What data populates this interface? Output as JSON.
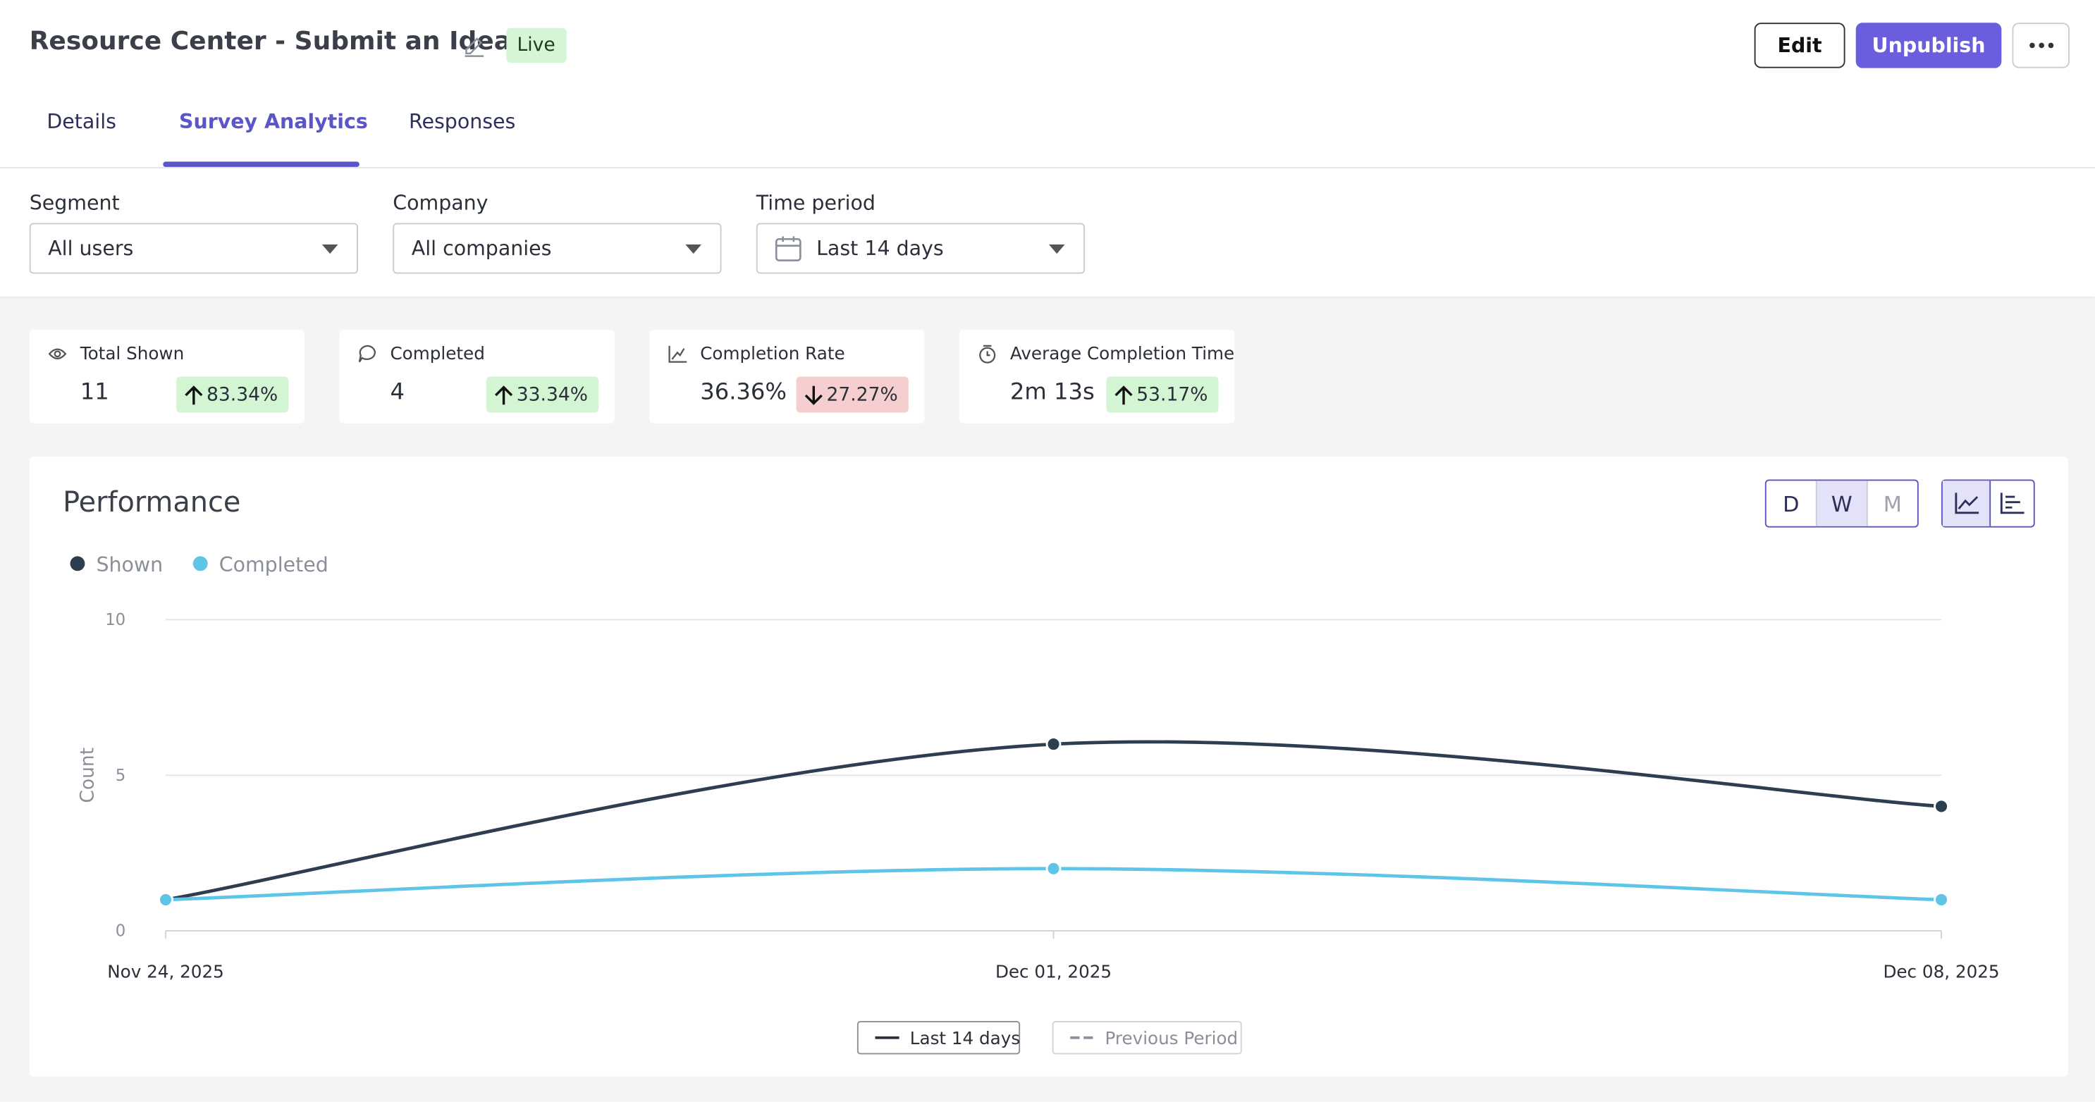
{
  "header": {
    "title": "Resource Center - Submit an Idea",
    "status": "Live",
    "actions": [
      "Edit",
      "Unpublish"
    ]
  },
  "tabs": [
    "Details",
    "Survey Analytics",
    "Responses"
  ],
  "active_tab": 1,
  "filters": [
    {
      "label": "Segment",
      "value": "All users"
    },
    {
      "label": "Company",
      "value": "All companies"
    },
    {
      "label": "Time period",
      "value": "Last 14 days"
    }
  ],
  "stats": [
    {
      "label": "Total Shown",
      "value": "11",
      "change": "83.34%",
      "trend": "up"
    },
    {
      "label": "Completed",
      "value": "4",
      "change": "33.34%",
      "trend": "up"
    },
    {
      "label": "Completion Rate",
      "value": "36.36%",
      "change": "27.27%",
      "trend": "down"
    },
    {
      "label": "Average Completion Time",
      "value": "2m 13s",
      "change": "53.17%",
      "trend": "up"
    }
  ],
  "chart_data": {
    "type": "line",
    "title": "Performance",
    "y_label": "Count",
    "granularity": [
      "D",
      "W",
      "M"
    ],
    "active_granularity": 1,
    "categories": [
      "Nov 24, 2025",
      "Dec 01, 2025",
      "Dec 08, 2025"
    ],
    "series": [
      {
        "name": "Shown",
        "color": "#2d3e50",
        "values": [
          1,
          6,
          4
        ]
      },
      {
        "name": "Completed",
        "color": "#5ec5e8",
        "values": [
          1,
          2,
          1
        ]
      }
    ],
    "ylim": [
      0,
      10
    ],
    "yticks": [
      0,
      5,
      10
    ],
    "grid": true,
    "periods": [
      "Last 14 days",
      "Previous Period"
    ]
  }
}
